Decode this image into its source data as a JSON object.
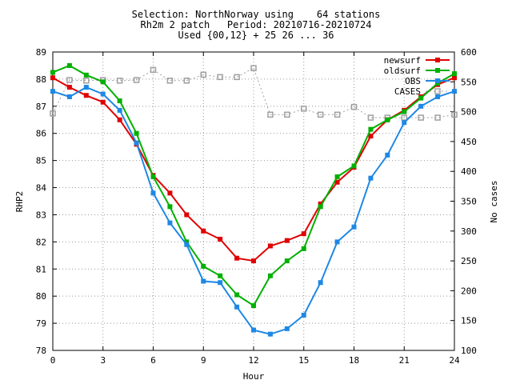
{
  "title_lines": [
    "Selection: NorthNorway using    64 stations",
    "Rh2m 2 patch   Period: 20210716-20210724",
    "Used {00,12} + 25 26 ... 36"
  ],
  "chart_data": {
    "type": "line",
    "xlabel": "Hour",
    "ylabel": "RHP2",
    "y2label": "No cases",
    "xlim": [
      0,
      24
    ],
    "ylim": [
      78,
      89
    ],
    "y2lim": [
      100,
      600
    ],
    "xticks": [
      "0",
      "3",
      "6",
      "9",
      "12",
      "15",
      "18",
      "21",
      "24"
    ],
    "yticks": [
      "78",
      "79",
      "80",
      "81",
      "82",
      "83",
      "84",
      "85",
      "86",
      "87",
      "88",
      "89"
    ],
    "y2ticks": [
      "100",
      "150",
      "200",
      "250",
      "300",
      "350",
      "400",
      "450",
      "500",
      "550",
      "600"
    ],
    "legend_position": "top-right",
    "x": [
      0,
      1,
      2,
      3,
      4,
      5,
      6,
      7,
      8,
      9,
      10,
      11,
      12,
      13,
      14,
      15,
      16,
      17,
      18,
      19,
      20,
      21,
      22,
      23,
      24
    ],
    "series": [
      {
        "name": "newsurf",
        "color": "#e00000",
        "marker": "square",
        "axis": "left",
        "values": [
          88.05,
          87.7,
          87.4,
          87.15,
          86.5,
          85.6,
          84.45,
          83.8,
          83.0,
          82.4,
          82.1,
          81.4,
          81.3,
          81.85,
          82.05,
          82.3,
          83.4,
          84.2,
          84.75,
          85.9,
          86.5,
          86.85,
          87.35,
          87.8,
          88.05
        ]
      },
      {
        "name": "oldsurf",
        "color": "#00b000",
        "marker": "square",
        "axis": "left",
        "values": [
          88.25,
          88.5,
          88.15,
          87.9,
          87.2,
          86.0,
          84.4,
          83.3,
          82.0,
          81.1,
          80.75,
          80.05,
          79.65,
          80.75,
          81.3,
          81.75,
          83.3,
          84.4,
          84.8,
          86.15,
          86.5,
          86.8,
          87.3,
          87.85,
          88.2
        ]
      },
      {
        "name": "OBS",
        "color": "#1e88e5",
        "marker": "square",
        "axis": "left",
        "values": [
          87.55,
          87.35,
          87.7,
          87.45,
          86.85,
          85.65,
          83.8,
          82.7,
          81.9,
          80.55,
          80.5,
          79.6,
          78.75,
          78.6,
          78.8,
          79.3,
          80.5,
          82.0,
          82.55,
          84.35,
          85.2,
          86.4,
          87.0,
          87.35,
          87.55
        ]
      },
      {
        "name": "CASES",
        "color": "#a0a0a0",
        "marker": "open-square",
        "dashed": true,
        "axis": "right",
        "values": [
          497,
          553,
          552,
          553,
          552,
          553,
          570,
          552,
          552,
          562,
          558,
          558,
          573,
          495,
          495,
          505,
          495,
          495,
          508,
          490,
          490,
          490,
          490,
          490,
          495
        ]
      }
    ]
  }
}
